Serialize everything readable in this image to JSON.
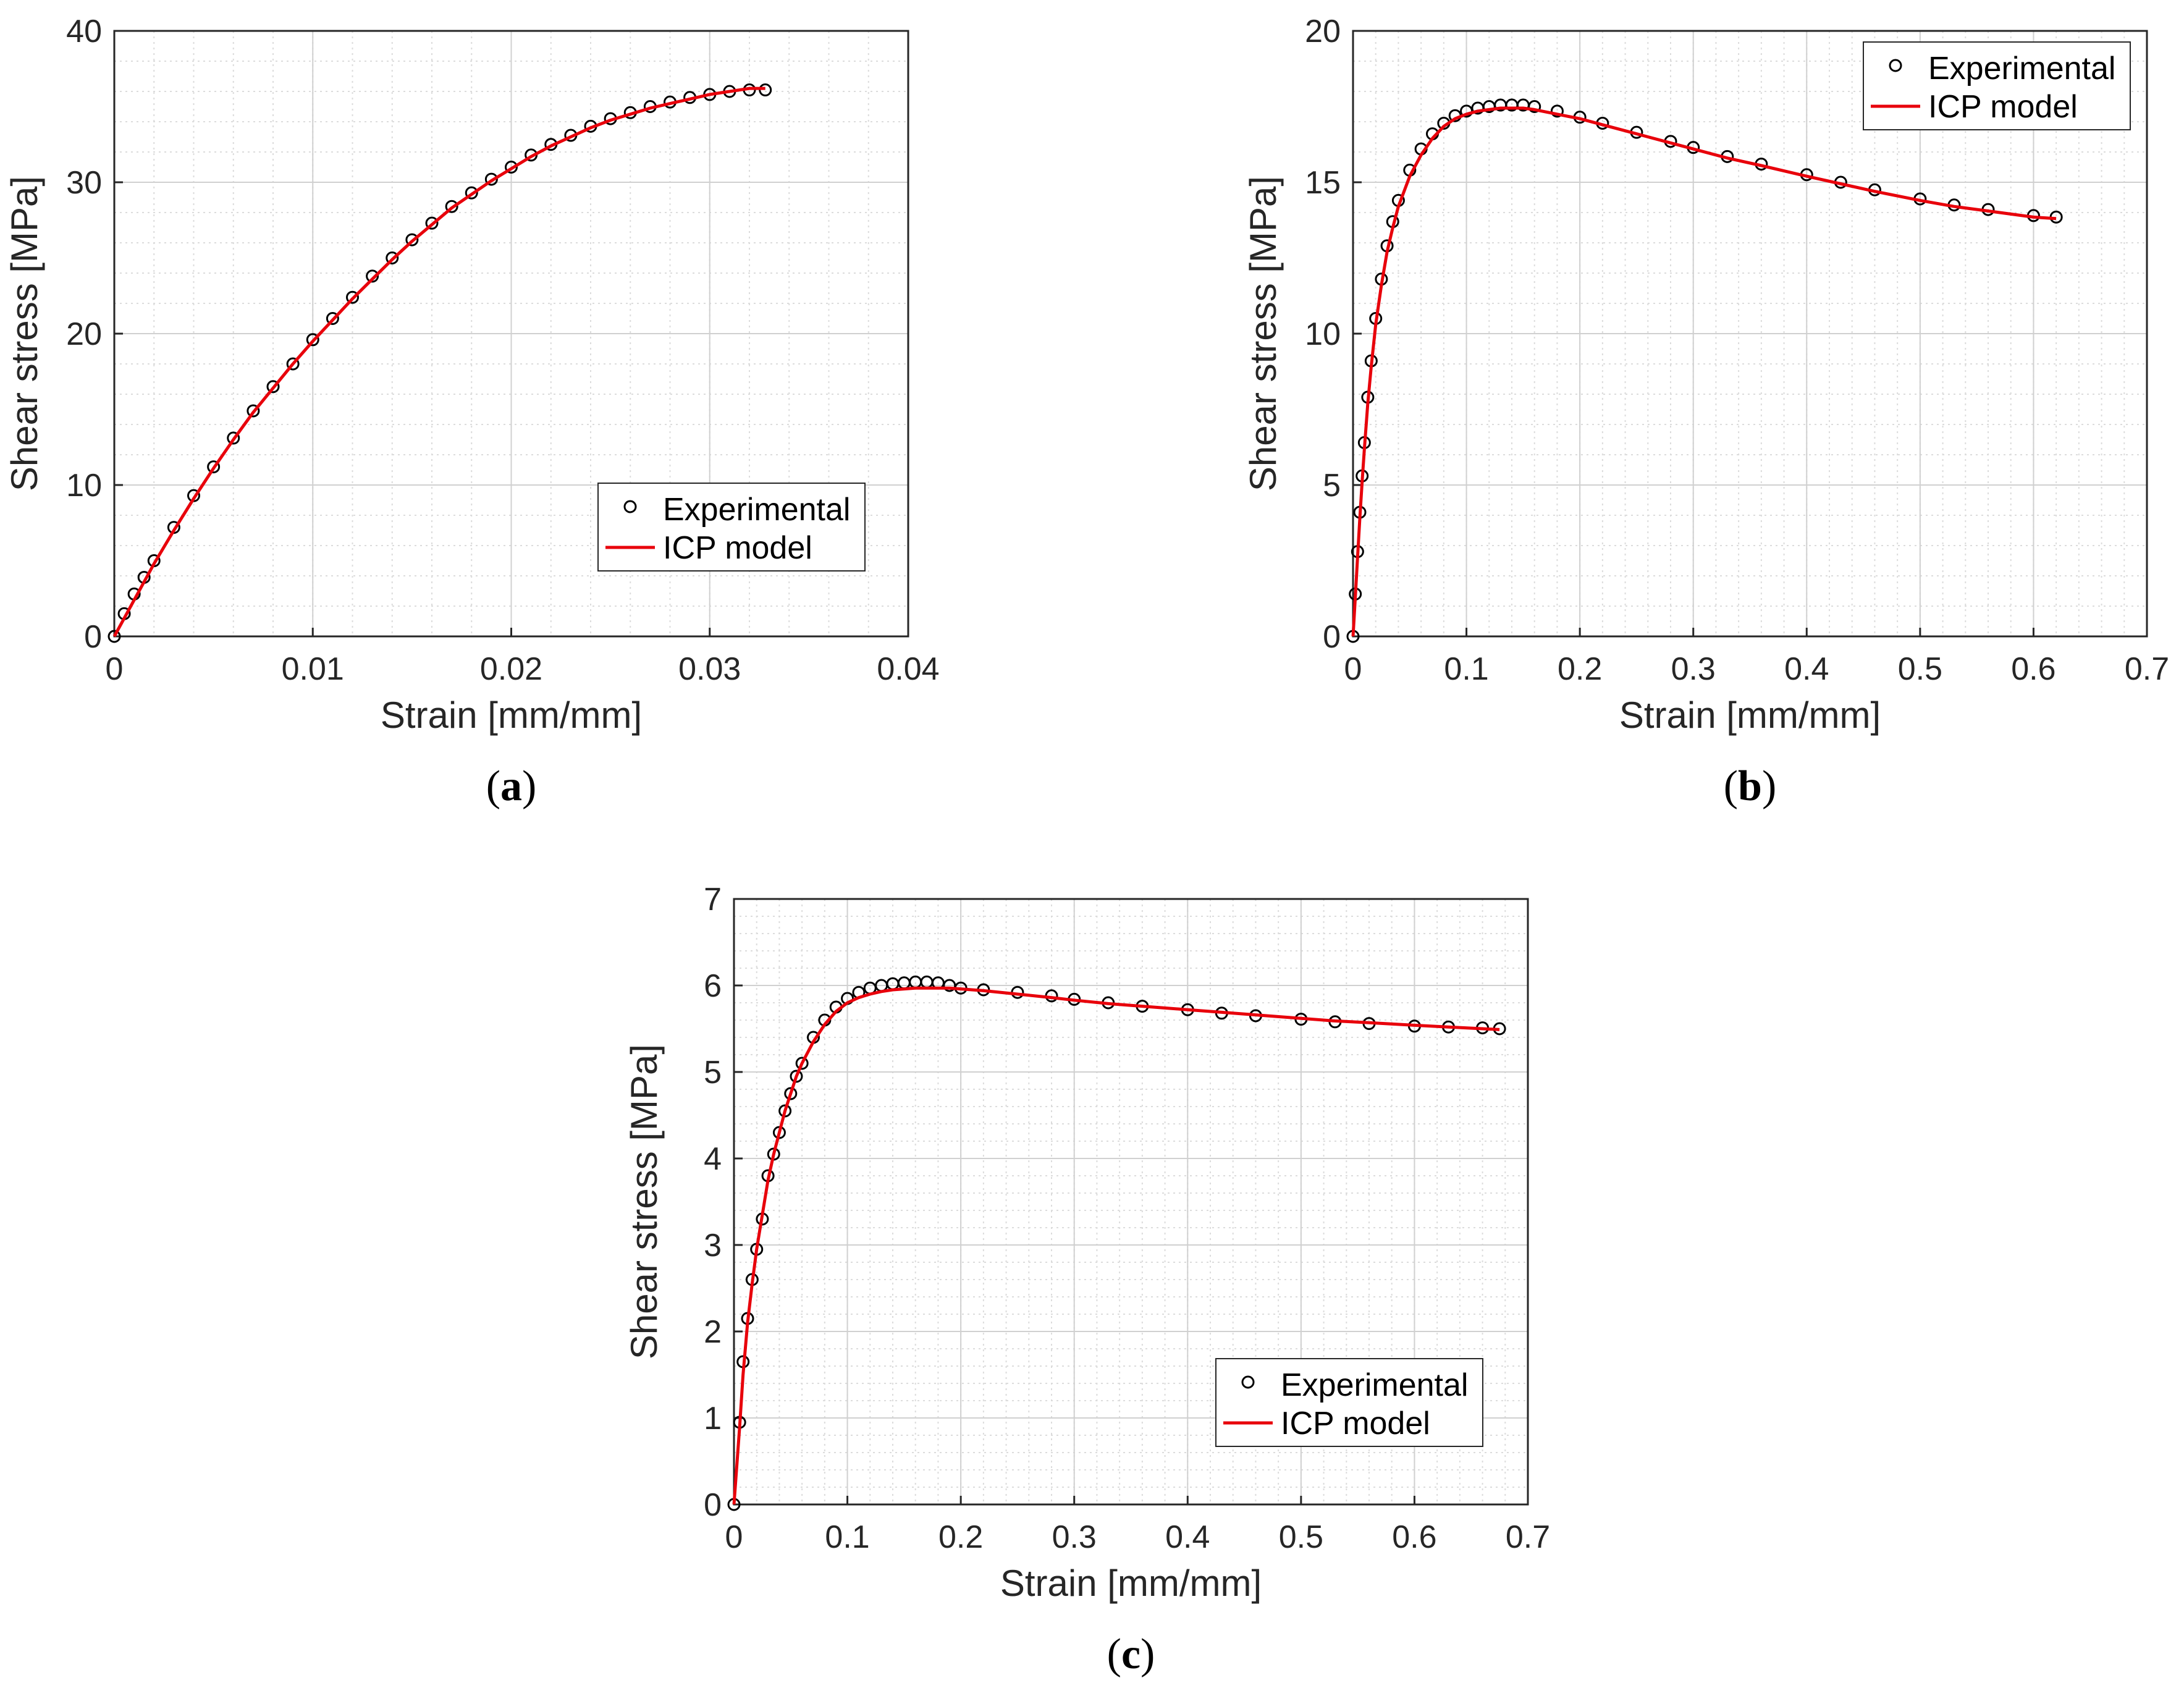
{
  "chart_data": [
    {
      "type": "line",
      "panel_label": "a",
      "xlabel": "Strain [mm/mm]",
      "ylabel": "Shear stress [MPa]",
      "xlim": [
        0,
        0.04
      ],
      "ylim": [
        0,
        40
      ],
      "xticks": [
        "0",
        "0.01",
        "0.02",
        "0.03",
        "0.04"
      ],
      "yticks": [
        "0",
        "10",
        "20",
        "30",
        "40"
      ],
      "grid": true,
      "legend_position": "lower-right",
      "series": [
        {
          "name": "Experimental",
          "marker": "circle",
          "color": "#000000",
          "x": [
            0,
            0.0005,
            0.001,
            0.0015,
            0.002,
            0.003,
            0.004,
            0.005,
            0.006,
            0.007,
            0.008,
            0.009,
            0.01,
            0.011,
            0.012,
            0.013,
            0.014,
            0.015,
            0.016,
            0.017,
            0.018,
            0.019,
            0.02,
            0.021,
            0.022,
            0.023,
            0.024,
            0.025,
            0.026,
            0.027,
            0.028,
            0.029,
            0.03,
            0.031,
            0.032,
            0.0328
          ],
          "y": [
            0,
            1.5,
            2.8,
            3.9,
            5.0,
            7.2,
            9.3,
            11.2,
            13.1,
            14.9,
            16.5,
            18.0,
            19.6,
            21.0,
            22.4,
            23.8,
            25.0,
            26.2,
            27.3,
            28.4,
            29.3,
            30.2,
            31.0,
            31.8,
            32.5,
            33.1,
            33.7,
            34.2,
            34.6,
            35.0,
            35.3,
            35.6,
            35.8,
            36.0,
            36.1,
            36.1
          ]
        },
        {
          "name": "ICP model",
          "marker": "line",
          "color": "#e8000b",
          "x": [
            0,
            0.0005,
            0.001,
            0.0015,
            0.002,
            0.003,
            0.004,
            0.005,
            0.006,
            0.007,
            0.008,
            0.009,
            0.01,
            0.011,
            0.012,
            0.013,
            0.014,
            0.015,
            0.016,
            0.017,
            0.018,
            0.019,
            0.02,
            0.021,
            0.022,
            0.023,
            0.024,
            0.025,
            0.026,
            0.027,
            0.028,
            0.029,
            0.03,
            0.031,
            0.032,
            0.0328
          ],
          "y": [
            0,
            1.2,
            2.4,
            3.6,
            4.8,
            7.0,
            9.1,
            11.1,
            13.0,
            14.8,
            16.4,
            18.0,
            19.5,
            20.9,
            22.3,
            23.6,
            24.9,
            26.1,
            27.2,
            28.3,
            29.2,
            30.1,
            30.9,
            31.7,
            32.4,
            33.0,
            33.6,
            34.1,
            34.5,
            34.9,
            35.2,
            35.5,
            35.8,
            36.0,
            36.2,
            36.2
          ]
        }
      ]
    },
    {
      "type": "line",
      "panel_label": "b",
      "xlabel": "Strain [mm/mm]",
      "ylabel": "Shear stress [MPa]",
      "xlim": [
        0,
        0.7
      ],
      "ylim": [
        0,
        20
      ],
      "xticks": [
        "0",
        "0.1",
        "0.2",
        "0.3",
        "0.4",
        "0.5",
        "0.6",
        "0.7"
      ],
      "yticks": [
        "0",
        "5",
        "10",
        "15",
        "20"
      ],
      "grid": true,
      "legend_position": "top-right",
      "series": [
        {
          "name": "Experimental",
          "marker": "circle",
          "color": "#000000",
          "x": [
            0,
            0.002,
            0.004,
            0.006,
            0.008,
            0.01,
            0.013,
            0.016,
            0.02,
            0.025,
            0.03,
            0.035,
            0.04,
            0.05,
            0.06,
            0.07,
            0.08,
            0.09,
            0.1,
            0.11,
            0.12,
            0.13,
            0.14,
            0.15,
            0.16,
            0.18,
            0.2,
            0.22,
            0.25,
            0.28,
            0.3,
            0.33,
            0.36,
            0.4,
            0.43,
            0.46,
            0.5,
            0.53,
            0.56,
            0.6,
            0.62
          ],
          "y": [
            0,
            1.4,
            2.8,
            4.1,
            5.3,
            6.4,
            7.9,
            9.1,
            10.5,
            11.8,
            12.9,
            13.7,
            14.4,
            15.4,
            16.1,
            16.6,
            16.95,
            17.2,
            17.35,
            17.45,
            17.5,
            17.55,
            17.55,
            17.55,
            17.5,
            17.35,
            17.15,
            16.95,
            16.65,
            16.35,
            16.15,
            15.85,
            15.6,
            15.25,
            15.0,
            14.75,
            14.45,
            14.25,
            14.1,
            13.9,
            13.85
          ]
        },
        {
          "name": "ICP model",
          "marker": "line",
          "color": "#e8000b",
          "x": [
            0,
            0.002,
            0.004,
            0.006,
            0.008,
            0.01,
            0.013,
            0.016,
            0.02,
            0.025,
            0.03,
            0.035,
            0.04,
            0.05,
            0.06,
            0.07,
            0.08,
            0.09,
            0.1,
            0.11,
            0.12,
            0.13,
            0.14,
            0.15,
            0.16,
            0.18,
            0.2,
            0.22,
            0.25,
            0.28,
            0.3,
            0.33,
            0.36,
            0.4,
            0.43,
            0.46,
            0.5,
            0.53,
            0.56,
            0.6,
            0.62
          ],
          "y": [
            0,
            1.3,
            2.6,
            3.9,
            5.1,
            6.2,
            7.7,
            8.9,
            10.3,
            11.6,
            12.7,
            13.5,
            14.2,
            15.2,
            15.9,
            16.45,
            16.85,
            17.1,
            17.25,
            17.35,
            17.4,
            17.45,
            17.45,
            17.45,
            17.4,
            17.25,
            17.1,
            16.9,
            16.6,
            16.3,
            16.1,
            15.8,
            15.55,
            15.2,
            14.95,
            14.7,
            14.4,
            14.2,
            14.05,
            13.85,
            13.8
          ]
        }
      ]
    },
    {
      "type": "line",
      "panel_label": "c",
      "xlabel": "Strain [mm/mm]",
      "ylabel": "Shear stress [MPa]",
      "xlim": [
        0,
        0.7
      ],
      "ylim": [
        0,
        7
      ],
      "xticks": [
        "0",
        "0.1",
        "0.2",
        "0.3",
        "0.4",
        "0.5",
        "0.6",
        "0.7"
      ],
      "yticks": [
        "0",
        "1",
        "2",
        "3",
        "4",
        "5",
        "6",
        "7"
      ],
      "grid": true,
      "legend_position": "lower-right",
      "series": [
        {
          "name": "Experimental",
          "marker": "circle",
          "color": "#000000",
          "x": [
            0,
            0.005,
            0.008,
            0.012,
            0.016,
            0.02,
            0.025,
            0.03,
            0.035,
            0.04,
            0.045,
            0.05,
            0.055,
            0.06,
            0.07,
            0.08,
            0.09,
            0.1,
            0.11,
            0.12,
            0.13,
            0.14,
            0.15,
            0.16,
            0.17,
            0.18,
            0.19,
            0.2,
            0.22,
            0.25,
            0.28,
            0.3,
            0.33,
            0.36,
            0.4,
            0.43,
            0.46,
            0.5,
            0.53,
            0.56,
            0.6,
            0.63,
            0.66,
            0.675
          ],
          "y": [
            0,
            0.95,
            1.65,
            2.15,
            2.6,
            2.95,
            3.3,
            3.8,
            4.05,
            4.3,
            4.55,
            4.75,
            4.95,
            5.1,
            5.4,
            5.6,
            5.75,
            5.85,
            5.92,
            5.97,
            6.0,
            6.02,
            6.03,
            6.04,
            6.04,
            6.03,
            6.0,
            5.97,
            5.95,
            5.92,
            5.88,
            5.84,
            5.8,
            5.76,
            5.72,
            5.68,
            5.65,
            5.61,
            5.58,
            5.56,
            5.53,
            5.52,
            5.51,
            5.5
          ]
        },
        {
          "name": "ICP model",
          "marker": "line",
          "color": "#e8000b",
          "x": [
            0,
            0.005,
            0.008,
            0.012,
            0.016,
            0.02,
            0.025,
            0.03,
            0.035,
            0.04,
            0.045,
            0.05,
            0.055,
            0.06,
            0.07,
            0.08,
            0.09,
            0.1,
            0.11,
            0.12,
            0.13,
            0.14,
            0.15,
            0.16,
            0.17,
            0.18,
            0.19,
            0.2,
            0.22,
            0.25,
            0.28,
            0.3,
            0.33,
            0.36,
            0.4,
            0.43,
            0.46,
            0.5,
            0.53,
            0.56,
            0.6,
            0.63,
            0.66,
            0.675
          ],
          "y": [
            0,
            0.9,
            1.5,
            2.1,
            2.55,
            2.95,
            3.35,
            3.75,
            4.05,
            4.3,
            4.55,
            4.75,
            4.95,
            5.1,
            5.35,
            5.55,
            5.7,
            5.8,
            5.86,
            5.9,
            5.93,
            5.95,
            5.96,
            5.97,
            5.97,
            5.97,
            5.97,
            5.96,
            5.94,
            5.9,
            5.86,
            5.83,
            5.79,
            5.76,
            5.72,
            5.69,
            5.66,
            5.62,
            5.59,
            5.57,
            5.54,
            5.52,
            5.5,
            5.49
          ]
        }
      ]
    }
  ]
}
